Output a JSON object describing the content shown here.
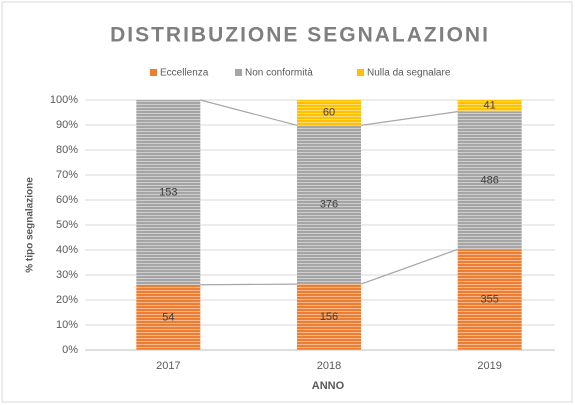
{
  "chart_data": {
    "type": "bar",
    "stack": "percent",
    "title": "DISTRIBUZIONE SEGNALAZIONI",
    "x_label": "ANNO",
    "y_label": "% tipo segnalazione",
    "categories": [
      "2017",
      "2018",
      "2019"
    ],
    "series": [
      {
        "name": "Eccellenza",
        "color": "#ed7d31",
        "values": [
          54,
          156,
          355
        ]
      },
      {
        "name": "Non conformità",
        "color": "#a5a5a5",
        "values": [
          153,
          376,
          486
        ]
      },
      {
        "name": "Nulla da segnalare",
        "color": "#ffc000",
        "values": [
          null,
          60,
          41
        ]
      }
    ],
    "ylim": [
      0,
      100
    ],
    "yticks": [
      {
        "value": 0,
        "label": "0%"
      },
      {
        "value": 10,
        "label": "10%"
      },
      {
        "value": 20,
        "label": "20%"
      },
      {
        "value": 30,
        "label": "30%"
      },
      {
        "value": 40,
        "label": "40%"
      },
      {
        "value": 50,
        "label": "50%"
      },
      {
        "value": 60,
        "label": "60%"
      },
      {
        "value": 70,
        "label": "70%"
      },
      {
        "value": 80,
        "label": "80%"
      },
      {
        "value": 90,
        "label": "90%"
      },
      {
        "value": 100,
        "label": "100%"
      }
    ],
    "grid": true,
    "legend": "top",
    "series_lines": true
  }
}
